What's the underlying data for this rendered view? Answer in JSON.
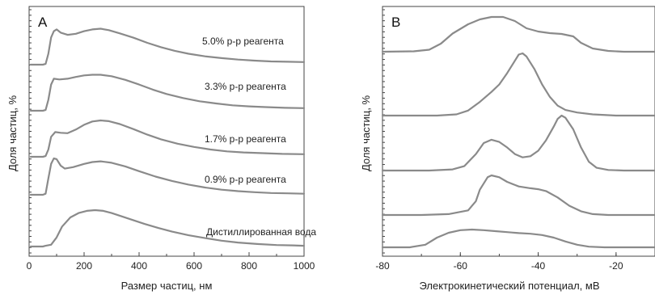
{
  "chart_data": [
    {
      "type": "line",
      "panel_label": "A",
      "xlabel": "Размер частиц, нм",
      "ylabel": "Доля частиц, %",
      "xlim": [
        0,
        1000
      ],
      "x_ticks": [
        0,
        200,
        400,
        600,
        800,
        1000
      ],
      "x_tick_labels": [
        "0",
        "200",
        "400",
        "600",
        "800",
        "1000"
      ],
      "grid": false,
      "legend": "none",
      "series": [
        {
          "name": "5.0% р-р реагента",
          "points": [
            [
              50,
              0
            ],
            [
              60,
              0.02
            ],
            [
              70,
              0.3
            ],
            [
              80,
              0.75
            ],
            [
              90,
              0.92
            ],
            [
              100,
              0.97
            ],
            [
              115,
              0.88
            ],
            [
              140,
              0.82
            ],
            [
              170,
              0.85
            ],
            [
              200,
              0.92
            ],
            [
              230,
              0.97
            ],
            [
              260,
              0.99
            ],
            [
              290,
              0.95
            ],
            [
              330,
              0.86
            ],
            [
              380,
              0.74
            ],
            [
              430,
              0.6
            ],
            [
              480,
              0.48
            ],
            [
              530,
              0.38
            ],
            [
              580,
              0.3
            ],
            [
              640,
              0.23
            ],
            [
              700,
              0.18
            ],
            [
              760,
              0.14
            ],
            [
              820,
              0.11
            ],
            [
              880,
              0.09
            ],
            [
              940,
              0.08
            ],
            [
              1000,
              0.07
            ]
          ]
        },
        {
          "name": "3.3% р-р реагента",
          "points": [
            [
              50,
              0
            ],
            [
              60,
              0.02
            ],
            [
              70,
              0.3
            ],
            [
              80,
              0.72
            ],
            [
              90,
              0.88
            ],
            [
              110,
              0.86
            ],
            [
              140,
              0.88
            ],
            [
              170,
              0.93
            ],
            [
              200,
              0.97
            ],
            [
              230,
              0.99
            ],
            [
              260,
              0.99
            ],
            [
              300,
              0.95
            ],
            [
              350,
              0.85
            ],
            [
              400,
              0.72
            ],
            [
              450,
              0.58
            ],
            [
              500,
              0.46
            ],
            [
              560,
              0.35
            ],
            [
              620,
              0.26
            ],
            [
              680,
              0.2
            ],
            [
              740,
              0.15
            ],
            [
              800,
              0.12
            ],
            [
              860,
              0.1
            ],
            [
              930,
              0.08
            ],
            [
              1000,
              0.07
            ]
          ]
        },
        {
          "name": "1.7% р-р реагента",
          "points": [
            [
              50,
              0
            ],
            [
              60,
              0.02
            ],
            [
              70,
              0.2
            ],
            [
              80,
              0.55
            ],
            [
              95,
              0.68
            ],
            [
              115,
              0.66
            ],
            [
              140,
              0.65
            ],
            [
              170,
              0.75
            ],
            [
              200,
              0.88
            ],
            [
              230,
              0.97
            ],
            [
              260,
              1.0
            ],
            [
              290,
              0.98
            ],
            [
              330,
              0.9
            ],
            [
              380,
              0.76
            ],
            [
              430,
              0.61
            ],
            [
              480,
              0.48
            ],
            [
              540,
              0.36
            ],
            [
              600,
              0.27
            ],
            [
              660,
              0.2
            ],
            [
              720,
              0.15
            ],
            [
              780,
              0.12
            ],
            [
              850,
              0.1
            ],
            [
              920,
              0.08
            ],
            [
              1000,
              0.07
            ]
          ]
        },
        {
          "name": "0.9% р-р реагента",
          "points": [
            [
              50,
              0
            ],
            [
              60,
              0.03
            ],
            [
              70,
              0.45
            ],
            [
              80,
              0.85
            ],
            [
              90,
              1.0
            ],
            [
              100,
              0.98
            ],
            [
              115,
              0.8
            ],
            [
              130,
              0.72
            ],
            [
              160,
              0.76
            ],
            [
              200,
              0.85
            ],
            [
              230,
              0.9
            ],
            [
              260,
              0.92
            ],
            [
              300,
              0.88
            ],
            [
              350,
              0.78
            ],
            [
              400,
              0.65
            ],
            [
              460,
              0.5
            ],
            [
              520,
              0.38
            ],
            [
              580,
              0.28
            ],
            [
              640,
              0.2
            ],
            [
              700,
              0.14
            ],
            [
              760,
              0.1
            ],
            [
              820,
              0.07
            ],
            [
              880,
              0.05
            ],
            [
              940,
              0.04
            ],
            [
              1000,
              0.03
            ]
          ]
        },
        {
          "name": "Дистиллированная вода",
          "points": [
            [
              50,
              0
            ],
            [
              60,
              0.02
            ],
            [
              80,
              0.05
            ],
            [
              100,
              0.25
            ],
            [
              120,
              0.55
            ],
            [
              150,
              0.8
            ],
            [
              180,
              0.92
            ],
            [
              210,
              0.98
            ],
            [
              240,
              1.0
            ],
            [
              270,
              0.98
            ],
            [
              300,
              0.92
            ],
            [
              340,
              0.82
            ],
            [
              380,
              0.72
            ],
            [
              420,
              0.62
            ],
            [
              470,
              0.51
            ],
            [
              520,
              0.41
            ],
            [
              580,
              0.31
            ],
            [
              640,
              0.23
            ],
            [
              700,
              0.16
            ],
            [
              760,
              0.11
            ],
            [
              830,
              0.07
            ],
            [
              900,
              0.04
            ],
            [
              960,
              0.03
            ],
            [
              1000,
              0.02
            ]
          ]
        }
      ]
    },
    {
      "type": "line",
      "panel_label": "B",
      "xlabel": "Электрокинетический потенциал, мВ",
      "ylabel": "Доля частиц, %",
      "xlim": [
        -80,
        -10
      ],
      "x_ticks": [
        -80,
        -60,
        -40,
        -20
      ],
      "x_tick_labels": [
        "-80",
        "-60",
        "-40",
        "-20"
      ],
      "grid": false,
      "legend": "none",
      "series": [
        {
          "name": "",
          "points": [
            [
              -80,
              0
            ],
            [
              -72,
              0.01
            ],
            [
              -68,
              0.05
            ],
            [
              -65,
              0.2
            ],
            [
              -62,
              0.45
            ],
            [
              -58,
              0.68
            ],
            [
              -55,
              0.8
            ],
            [
              -52,
              0.86
            ],
            [
              -49,
              0.86
            ],
            [
              -46,
              0.76
            ],
            [
              -43,
              0.58
            ],
            [
              -40,
              0.5
            ],
            [
              -37,
              0.46
            ],
            [
              -34,
              0.44
            ],
            [
              -31,
              0.38
            ],
            [
              -29,
              0.22
            ],
            [
              -26,
              0.08
            ],
            [
              -22,
              0.02
            ],
            [
              -18,
              0.0
            ],
            [
              -10,
              0.0
            ]
          ]
        },
        {
          "name": "",
          "points": [
            [
              -80,
              0
            ],
            [
              -66,
              0
            ],
            [
              -61,
              0.02
            ],
            [
              -58,
              0.08
            ],
            [
              -55,
              0.22
            ],
            [
              -52,
              0.38
            ],
            [
              -50,
              0.5
            ],
            [
              -48,
              0.68
            ],
            [
              -46,
              0.88
            ],
            [
              -45,
              0.98
            ],
            [
              -44,
              1.0
            ],
            [
              -43,
              0.95
            ],
            [
              -41,
              0.75
            ],
            [
              -39,
              0.5
            ],
            [
              -37,
              0.3
            ],
            [
              -35,
              0.16
            ],
            [
              -33,
              0.09
            ],
            [
              -30,
              0.05
            ],
            [
              -26,
              0.02
            ],
            [
              -20,
              0.0
            ],
            [
              -10,
              0.0
            ]
          ]
        },
        {
          "name": "",
          "points": [
            [
              -80,
              0
            ],
            [
              -68,
              0
            ],
            [
              -62,
              0.02
            ],
            [
              -59,
              0.08
            ],
            [
              -56,
              0.3
            ],
            [
              -54,
              0.5
            ],
            [
              -52,
              0.56
            ],
            [
              -50,
              0.52
            ],
            [
              -48,
              0.42
            ],
            [
              -46,
              0.3
            ],
            [
              -44,
              0.24
            ],
            [
              -42,
              0.26
            ],
            [
              -40,
              0.36
            ],
            [
              -38,
              0.55
            ],
            [
              -36,
              0.8
            ],
            [
              -35,
              0.94
            ],
            [
              -34,
              1.0
            ],
            [
              -33,
              0.96
            ],
            [
              -31,
              0.75
            ],
            [
              -29,
              0.42
            ],
            [
              -27,
              0.16
            ],
            [
              -25,
              0.05
            ],
            [
              -22,
              0.01
            ],
            [
              -18,
              0.0
            ],
            [
              -10,
              0.0
            ]
          ]
        },
        {
          "name": "",
          "points": [
            [
              -80,
              0
            ],
            [
              -70,
              0
            ],
            [
              -63,
              0.02
            ],
            [
              -58,
              0.1
            ],
            [
              -56,
              0.3
            ],
            [
              -55,
              0.55
            ],
            [
              -53,
              0.82
            ],
            [
              -52,
              0.86
            ],
            [
              -50,
              0.82
            ],
            [
              -48,
              0.72
            ],
            [
              -45,
              0.62
            ],
            [
              -42,
              0.58
            ],
            [
              -40,
              0.56
            ],
            [
              -38,
              0.52
            ],
            [
              -35,
              0.38
            ],
            [
              -32,
              0.2
            ],
            [
              -29,
              0.08
            ],
            [
              -26,
              0.02
            ],
            [
              -22,
              0.0
            ],
            [
              -10,
              0.0
            ]
          ]
        },
        {
          "name": "",
          "points": [
            [
              -80,
              0
            ],
            [
              -73,
              0
            ],
            [
              -69,
              0.08
            ],
            [
              -66,
              0.3
            ],
            [
              -63,
              0.45
            ],
            [
              -60,
              0.53
            ],
            [
              -57,
              0.55
            ],
            [
              -54,
              0.53
            ],
            [
              -51,
              0.5
            ],
            [
              -48,
              0.47
            ],
            [
              -45,
              0.44
            ],
            [
              -42,
              0.42
            ],
            [
              -39,
              0.38
            ],
            [
              -36,
              0.3
            ],
            [
              -33,
              0.18
            ],
            [
              -30,
              0.08
            ],
            [
              -27,
              0.02
            ],
            [
              -23,
              0.0
            ],
            [
              -10,
              0.0
            ]
          ]
        }
      ]
    }
  ]
}
